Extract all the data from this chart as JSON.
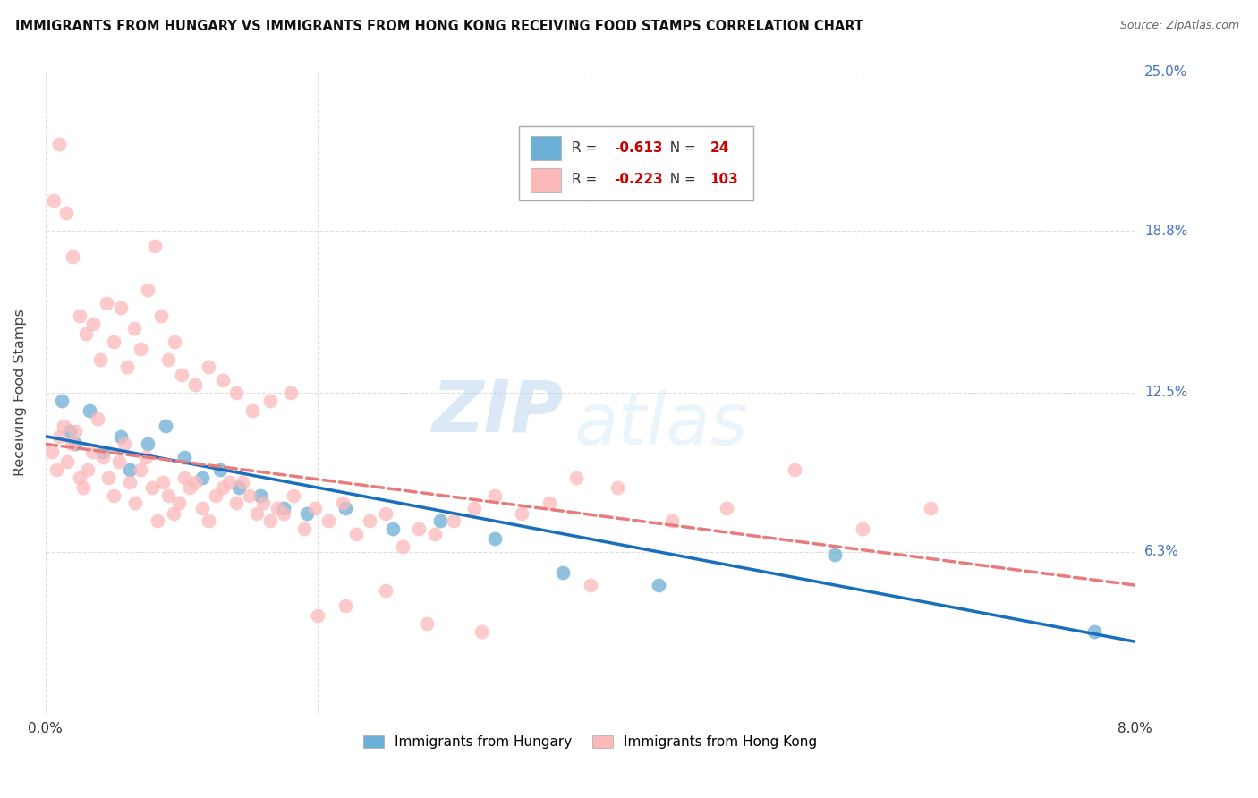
{
  "title": "IMMIGRANTS FROM HUNGARY VS IMMIGRANTS FROM HONG KONG RECEIVING FOOD STAMPS CORRELATION CHART",
  "source": "Source: ZipAtlas.com",
  "ylabel": "Receiving Food Stamps",
  "xlim": [
    0.0,
    8.0
  ],
  "ylim": [
    0.0,
    25.0
  ],
  "yticks": [
    0.0,
    6.3,
    12.5,
    18.8,
    25.0
  ],
  "ytick_labels": [
    "",
    "6.3%",
    "12.5%",
    "18.8%",
    "25.0%"
  ],
  "xticks": [
    0.0,
    2.0,
    4.0,
    6.0,
    8.0
  ],
  "xtick_labels": [
    "0.0%",
    "",
    "",
    "",
    "8.0%"
  ],
  "hungary_R": -0.613,
  "hungary_N": 24,
  "hongkong_R": -0.223,
  "hongkong_N": 103,
  "hungary_color": "#6baed6",
  "hongkong_color": "#fcb9b9",
  "hungary_line_color": "#1a6fbd",
  "hongkong_line_color": "#e87b7b",
  "hungary_scatter_x": [
    0.12,
    0.18,
    0.22,
    0.32,
    0.42,
    0.55,
    0.62,
    0.75,
    0.88,
    1.02,
    1.15,
    1.28,
    1.42,
    1.58,
    1.75,
    1.92,
    2.2,
    2.55,
    2.9,
    3.3,
    3.8,
    4.5,
    5.8,
    7.7
  ],
  "hungary_scatter_y": [
    12.2,
    11.0,
    10.5,
    11.8,
    10.2,
    10.8,
    9.5,
    10.5,
    11.2,
    10.0,
    9.2,
    9.5,
    8.8,
    8.5,
    8.0,
    7.8,
    8.0,
    7.2,
    7.5,
    6.8,
    5.5,
    5.0,
    6.2,
    3.2
  ],
  "hongkong_scatter_x": [
    0.05,
    0.08,
    0.1,
    0.13,
    0.16,
    0.19,
    0.22,
    0.25,
    0.28,
    0.31,
    0.34,
    0.38,
    0.42,
    0.46,
    0.5,
    0.54,
    0.58,
    0.62,
    0.66,
    0.7,
    0.74,
    0.78,
    0.82,
    0.86,
    0.9,
    0.94,
    0.98,
    1.02,
    1.06,
    1.1,
    1.15,
    1.2,
    1.25,
    1.3,
    1.35,
    1.4,
    1.45,
    1.5,
    1.55,
    1.6,
    1.65,
    1.7,
    1.75,
    1.82,
    1.9,
    1.98,
    2.08,
    2.18,
    2.28,
    2.38,
    2.5,
    2.62,
    2.74,
    2.86,
    3.0,
    3.15,
    3.3,
    3.5,
    3.7,
    3.9,
    4.2,
    4.6,
    5.0,
    5.5,
    6.0,
    6.5,
    0.06,
    0.1,
    0.15,
    0.2,
    0.25,
    0.3,
    0.35,
    0.4,
    0.45,
    0.5,
    0.55,
    0.6,
    0.65,
    0.7,
    0.75,
    0.8,
    0.85,
    0.9,
    0.95,
    1.0,
    1.1,
    1.2,
    1.3,
    1.4,
    1.52,
    1.65,
    1.8,
    2.0,
    2.2,
    2.5,
    2.8,
    3.2,
    4.0
  ],
  "hongkong_scatter_y": [
    10.2,
    9.5,
    10.8,
    11.2,
    9.8,
    10.5,
    11.0,
    9.2,
    8.8,
    9.5,
    10.2,
    11.5,
    10.0,
    9.2,
    8.5,
    9.8,
    10.5,
    9.0,
    8.2,
    9.5,
    10.0,
    8.8,
    7.5,
    9.0,
    8.5,
    7.8,
    8.2,
    9.2,
    8.8,
    9.0,
    8.0,
    7.5,
    8.5,
    8.8,
    9.0,
    8.2,
    9.0,
    8.5,
    7.8,
    8.2,
    7.5,
    8.0,
    7.8,
    8.5,
    7.2,
    8.0,
    7.5,
    8.2,
    7.0,
    7.5,
    7.8,
    6.5,
    7.2,
    7.0,
    7.5,
    8.0,
    8.5,
    7.8,
    8.2,
    9.2,
    8.8,
    7.5,
    8.0,
    9.5,
    7.2,
    8.0,
    20.0,
    22.2,
    19.5,
    17.8,
    15.5,
    14.8,
    15.2,
    13.8,
    16.0,
    14.5,
    15.8,
    13.5,
    15.0,
    14.2,
    16.5,
    18.2,
    15.5,
    13.8,
    14.5,
    13.2,
    12.8,
    13.5,
    13.0,
    12.5,
    11.8,
    12.2,
    12.5,
    3.8,
    4.2,
    4.8,
    3.5,
    3.2,
    5.0
  ],
  "watermark_zip": "ZIP",
  "watermark_atlas": "atlas",
  "background_color": "#ffffff",
  "grid_color": "#dddddd",
  "trend_hun_x0": 0.0,
  "trend_hun_y0": 10.8,
  "trend_hun_x1": 8.0,
  "trend_hun_y1": 2.8,
  "trend_hk_x0": 0.0,
  "trend_hk_y0": 10.5,
  "trend_hk_x1": 8.0,
  "trend_hk_y1": 5.0
}
